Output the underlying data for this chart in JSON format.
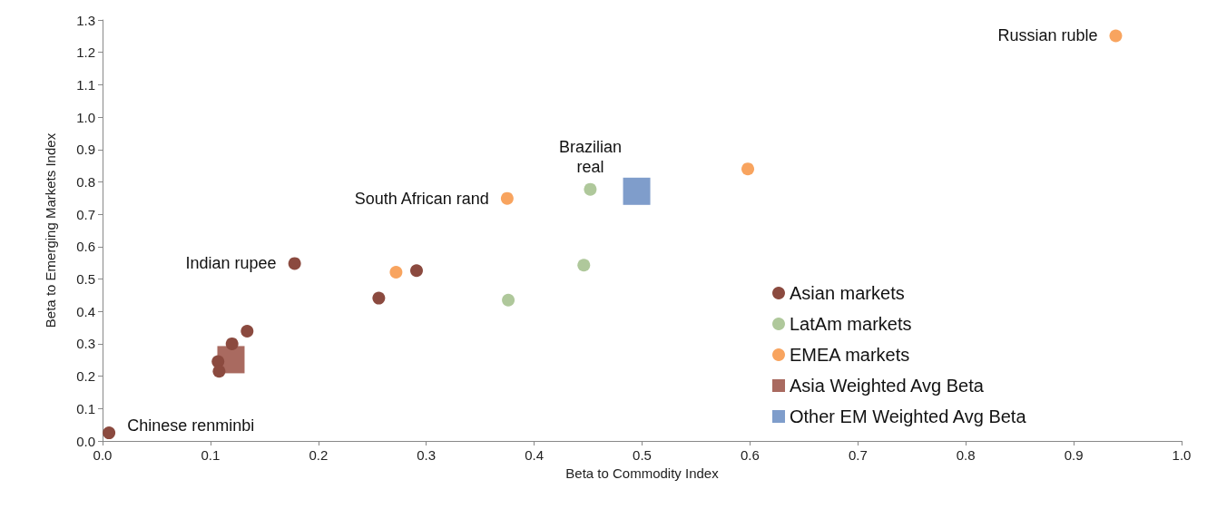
{
  "chart_data": {
    "type": "scatter",
    "xlabel": "Beta to Commodity Index",
    "ylabel": "Beta to Emerging Markets Index",
    "xlim": [
      0,
      1
    ],
    "ylim": [
      0,
      1.3
    ],
    "xticks": [
      {
        "value": 0,
        "label": "0.0"
      },
      0.1,
      0.2,
      0.3,
      0.4,
      0.5,
      0.6,
      0.7,
      0.8,
      0.9,
      {
        "value": 1,
        "label": "1.0"
      }
    ],
    "yticks": [
      {
        "value": 0,
        "label": "0.0"
      },
      0.1,
      0.2,
      0.3,
      0.4,
      0.5,
      0.6,
      0.7,
      0.8,
      0.9,
      {
        "value": 1,
        "label": "1.0"
      },
      1.1,
      1.2,
      1.3
    ],
    "grid": false,
    "legend": "right",
    "series": [
      {
        "name": "Asian markets",
        "color": "#8b4a3f",
        "marker": "circle",
        "x": [
          0.006,
          0.178,
          0.291,
          0.256,
          0.134,
          0.12,
          0.107,
          0.108
        ],
        "values": [
          0.025,
          0.548,
          0.526,
          0.441,
          0.339,
          0.3,
          0.245,
          0.215
        ]
      },
      {
        "name": "LatAm markets",
        "color": "#afc89b",
        "marker": "circle",
        "x": [
          0.452,
          0.446,
          0.376
        ],
        "values": [
          0.777,
          0.543,
          0.435
        ]
      },
      {
        "name": "EMEA markets",
        "color": "#f8a45f",
        "marker": "circle",
        "x": [
          0.939,
          0.598,
          0.375,
          0.272
        ],
        "values": [
          1.251,
          0.84,
          0.749,
          0.521
        ]
      },
      {
        "name": "Asia Weighted Avg Beta",
        "color": "#a96a60",
        "marker": "square",
        "x": [
          0.119
        ],
        "values": [
          0.251
        ]
      },
      {
        "name": "Other EM Weighted Avg Beta",
        "color": "#7f9dcb",
        "marker": "square",
        "x": [
          0.495
        ],
        "values": [
          0.771
        ]
      }
    ],
    "annotations": [
      {
        "text": "Russian ruble",
        "x": 0.939,
        "y": 1.251
      },
      {
        "text": "Brazilian\nreal",
        "x": 0.452,
        "y": 0.777
      },
      {
        "text": "South African rand",
        "x": 0.375,
        "y": 0.749
      },
      {
        "text": "Indian rupee",
        "x": 0.178,
        "y": 0.548
      },
      {
        "text": "Chinese renminbi",
        "x": 0.006,
        "y": 0.025
      }
    ]
  }
}
